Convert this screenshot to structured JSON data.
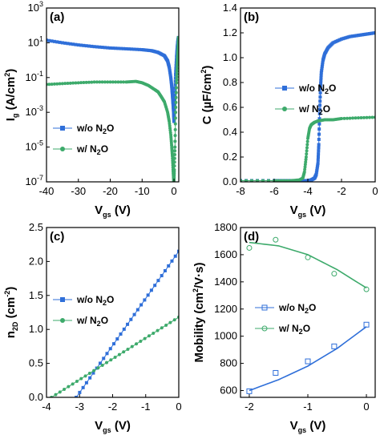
{
  "colors": {
    "blue": "#2f6fd9",
    "green": "#3daa6b",
    "axis": "#000000"
  },
  "chart_data": [
    {
      "id": "a",
      "type": "line",
      "panel_label": "(a)",
      "ylabel": {
        "main": "I",
        "sub": "g",
        "unit": " (A/cm",
        "unit_sup": "2",
        "unit_end": ")"
      },
      "xlabel": {
        "main": "V",
        "sub": "gs",
        "unit": " (V)"
      },
      "y_scale": "log",
      "xlim": [
        -40,
        1.5
      ],
      "ylim": [
        1e-07,
        1000
      ],
      "x_ticks": [
        -40,
        -30,
        -20,
        -10,
        0
      ],
      "x_tick_labels": [
        "-40",
        "-30",
        "-20",
        "-10",
        "0"
      ],
      "y_ticks": [
        1e-07,
        1e-05,
        0.001,
        0.1,
        10,
        1000
      ],
      "y_tick_labels": [
        {
          "base": "10",
          "exp": "-7"
        },
        {
          "base": "10",
          "exp": "-5"
        },
        {
          "base": "10",
          "exp": "-3"
        },
        {
          "base": "10",
          "exp": "-1"
        },
        {
          "base": "10",
          "exp": "1"
        },
        {
          "base": "10",
          "exp": "3"
        }
      ],
      "legend": {
        "position": "center-left",
        "entries": [
          {
            "label": "w/o N",
            "sub": "2",
            "label_end": "O",
            "marker": "square-filled",
            "color_key": "blue"
          },
          {
            "label": "w/ N",
            "sub": "2",
            "label_end": "O",
            "marker": "circle-filled",
            "color_key": "green"
          }
        ]
      },
      "series": [
        {
          "name": "w/o N2O",
          "marker": "square-filled",
          "color_key": "blue",
          "x": [
            -40,
            -35,
            -30,
            -25,
            -20,
            -15,
            -10,
            -7,
            -5,
            -3,
            -2,
            -1.5,
            -1,
            -0.7,
            -0.5,
            -0.3,
            -0.1,
            0,
            0.1,
            0.3,
            0.5,
            0.8,
            1.0,
            1.2,
            1.4
          ],
          "y": [
            14,
            10,
            7.5,
            6,
            5,
            4.5,
            4,
            3.5,
            2.8,
            1.8,
            0.9,
            0.4,
            0.1,
            0.03,
            0.01,
            0.003,
            0.0008,
            0.0003,
            0.001,
            0.01,
            0.15,
            1.5,
            5,
            12,
            20
          ]
        },
        {
          "name": "w/ N2O",
          "marker": "circle-filled",
          "color_key": "green",
          "x": [
            -40,
            -35,
            -30,
            -25,
            -20,
            -15,
            -12,
            -10,
            -8,
            -6,
            -5,
            -4,
            -3,
            -2,
            -1.5,
            -1,
            -0.7,
            -0.5,
            -0.3,
            -0.1,
            0,
            0.1,
            0.3,
            0.5,
            0.8,
            1.0,
            1.2,
            1.4
          ],
          "y": [
            0.04,
            0.045,
            0.05,
            0.055,
            0.055,
            0.055,
            0.06,
            0.05,
            0.035,
            0.02,
            0.015,
            0.008,
            0.004,
            0.001,
            0.0003,
            5e-05,
            1e-05,
            3e-06,
            5e-07,
            1e-07,
            1e-07,
            5e-07,
            1e-05,
            0.001,
            0.05,
            0.5,
            3,
            20
          ]
        }
      ]
    },
    {
      "id": "b",
      "type": "line",
      "panel_label": "(b)",
      "ylabel": {
        "main": "C",
        "sub": "",
        "unit": " (µF/cm",
        "unit_sup": "2",
        "unit_end": ")"
      },
      "xlabel": {
        "main": "V",
        "sub": "gs",
        "unit": " (V)"
      },
      "y_scale": "linear",
      "xlim": [
        -8,
        0
      ],
      "ylim": [
        0,
        1.4
      ],
      "x_ticks": [
        -8,
        -6,
        -4,
        -2,
        0
      ],
      "x_tick_labels": [
        "-8",
        "-6",
        "-4",
        "-2",
        "0"
      ],
      "y_ticks": [
        0,
        0.2,
        0.4,
        0.6,
        0.8,
        1.0,
        1.2,
        1.4
      ],
      "y_tick_labels": [
        "0.0",
        "0.2",
        "0.4",
        "0.6",
        "0.8",
        "1.0",
        "1.2",
        "1.4"
      ],
      "legend": {
        "position": "center-right",
        "entries": [
          {
            "label": "w/o N",
            "sub": "2",
            "label_end": "O",
            "marker": "square-filled",
            "color_key": "blue"
          },
          {
            "label": "w/ N",
            "sub": "2",
            "label_end": "O",
            "marker": "circle-filled",
            "color_key": "green"
          }
        ]
      },
      "series": [
        {
          "name": "w/o N2O",
          "marker": "square-filled",
          "color_key": "blue",
          "x": [
            -8,
            -6,
            -5,
            -4,
            -3.8,
            -3.6,
            -3.5,
            -3.4,
            -3.35,
            -3.3,
            -3.25,
            -3.2,
            -3.1,
            -3.0,
            -2.8,
            -2.5,
            -2.0,
            -1.5,
            -1.0,
            -0.5,
            0
          ],
          "y": [
            0.01,
            0.01,
            0.01,
            0.01,
            0.015,
            0.03,
            0.06,
            0.15,
            0.3,
            0.55,
            0.75,
            0.88,
            0.98,
            1.03,
            1.08,
            1.12,
            1.15,
            1.17,
            1.18,
            1.19,
            1.2
          ]
        },
        {
          "name": "w/ N2O",
          "marker": "circle-filled",
          "color_key": "green",
          "x": [
            -8,
            -6,
            -5,
            -4.5,
            -4.3,
            -4.2,
            -4.1,
            -4.0,
            -3.9,
            -3.8,
            -3.7,
            -3.6,
            -3.4,
            -3.0,
            -2.5,
            -2.0,
            -1.0,
            0
          ],
          "y": [
            0.01,
            0.01,
            0.01,
            0.015,
            0.03,
            0.08,
            0.2,
            0.35,
            0.43,
            0.46,
            0.47,
            0.48,
            0.49,
            0.5,
            0.5,
            0.51,
            0.515,
            0.52
          ]
        }
      ]
    },
    {
      "id": "c",
      "type": "line",
      "panel_label": "(c)",
      "ylabel": {
        "main": "n",
        "sub": "2D",
        "unit": " (cm",
        "unit_sup": "-2",
        "unit_end": ")"
      },
      "xlabel": {
        "main": "V",
        "sub": "gs",
        "unit": " (V)"
      },
      "y_scale": "linear",
      "xlim": [
        -4,
        0
      ],
      "ylim": [
        0,
        2.5
      ],
      "x_ticks": [
        -4,
        -3,
        -2,
        -1,
        0
      ],
      "x_tick_labels": [
        "-4",
        "-3",
        "-2",
        "-1",
        "0"
      ],
      "y_ticks": [
        0,
        0.5,
        1.0,
        1.5,
        2.0,
        2.5
      ],
      "y_tick_labels": [
        "0.0",
        "0.5",
        "1.0",
        "1.5",
        "2.0",
        "2.5"
      ],
      "legend": {
        "position": "center-left",
        "entries": [
          {
            "label": "w/o N",
            "sub": "2",
            "label_end": "O",
            "marker": "square-filled",
            "color_key": "blue"
          },
          {
            "label": "w/ N",
            "sub": "2",
            "label_end": "O",
            "marker": "circle-filled",
            "color_key": "green"
          }
        ]
      },
      "series": [
        {
          "name": "w/o N2O",
          "marker": "square-filled",
          "color_key": "blue",
          "x": [
            -3.1,
            0
          ],
          "y": [
            0,
            2.15
          ]
        },
        {
          "name": "w/ N2O",
          "marker": "circle-filled",
          "color_key": "green",
          "x": [
            -3.85,
            0
          ],
          "y": [
            0,
            1.18
          ]
        }
      ]
    },
    {
      "id": "d",
      "type": "scatter",
      "panel_label": "(d)",
      "ylabel": {
        "main": "Mobility",
        "sub": "",
        "unit": " (cm",
        "unit_sup": "2",
        "unit_end": "/V·s)"
      },
      "xlabel": {
        "main": "V",
        "sub": "gs",
        "unit": " (V)"
      },
      "y_scale": "linear",
      "xlim": [
        -2.15,
        0.15
      ],
      "ylim": [
        550,
        1800
      ],
      "x_ticks": [
        -2,
        -1,
        0
      ],
      "x_tick_labels": [
        "-2",
        "-1",
        "0"
      ],
      "y_ticks": [
        600,
        800,
        1000,
        1200,
        1400,
        1600,
        1800
      ],
      "y_tick_labels": [
        "600",
        "800",
        "1000",
        "1200",
        "1400",
        "1600",
        "1800"
      ],
      "legend": {
        "position": "center-right",
        "entries": [
          {
            "label": "w/o N",
            "sub": "2",
            "label_end": "O",
            "marker": "square-open",
            "color_key": "blue"
          },
          {
            "label": "w/ N",
            "sub": "2",
            "label_end": "O",
            "marker": "circle-open",
            "color_key": "green"
          }
        ]
      },
      "series": [
        {
          "name": "w/o N2O",
          "marker": "square-open",
          "color_key": "blue",
          "x": [
            -2.0,
            -1.55,
            -1.0,
            -0.55,
            0
          ],
          "y": [
            595,
            730,
            815,
            925,
            1085
          ],
          "fit": {
            "x": [
              -2.0,
              -1.5,
              -1.0,
              -0.5,
              0
            ],
            "y": [
              600,
              680,
              780,
              910,
              1070
            ]
          }
        },
        {
          "name": "w/ N2O",
          "marker": "circle-open",
          "color_key": "green",
          "x": [
            -2.0,
            -1.55,
            -1.0,
            -0.55,
            0
          ],
          "y": [
            1650,
            1710,
            1580,
            1460,
            1345
          ],
          "fit": {
            "x": [
              -2.0,
              -1.5,
              -1.0,
              -0.5,
              0
            ],
            "y": [
              1690,
              1665,
              1600,
              1490,
              1355
            ]
          }
        }
      ]
    }
  ]
}
